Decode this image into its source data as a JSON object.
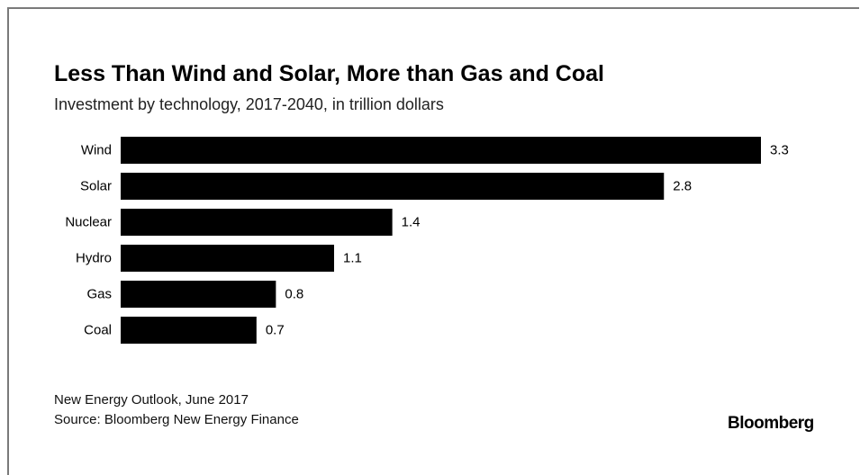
{
  "header": {
    "title": "Less Than Wind and Solar, More than Gas and Coal",
    "subtitle": "Investment by technology, 2017-2040, in trillion dollars"
  },
  "footer": {
    "note": "New Energy Outlook, June 2017",
    "source": "Source: Bloomberg New Energy Finance",
    "brand": "Bloomberg"
  },
  "colors": {
    "bar": "#000000",
    "text": "#000000",
    "background": "#ffffff"
  },
  "chart_data": {
    "type": "bar",
    "orientation": "horizontal",
    "title": "Less Than Wind and Solar, More than Gas and Coal",
    "subtitle": "Investment by technology, 2017-2040, in trillion dollars",
    "categories": [
      "Wind",
      "Solar",
      "Nuclear",
      "Hydro",
      "Gas",
      "Coal"
    ],
    "values": [
      3.3,
      2.8,
      1.4,
      1.1,
      0.8,
      0.7
    ],
    "value_labels": [
      "3.3",
      "2.8",
      "1.4",
      "1.1",
      "0.8",
      "0.7"
    ],
    "xlim": [
      0,
      3.3
    ],
    "grid": false,
    "legend": "none"
  }
}
